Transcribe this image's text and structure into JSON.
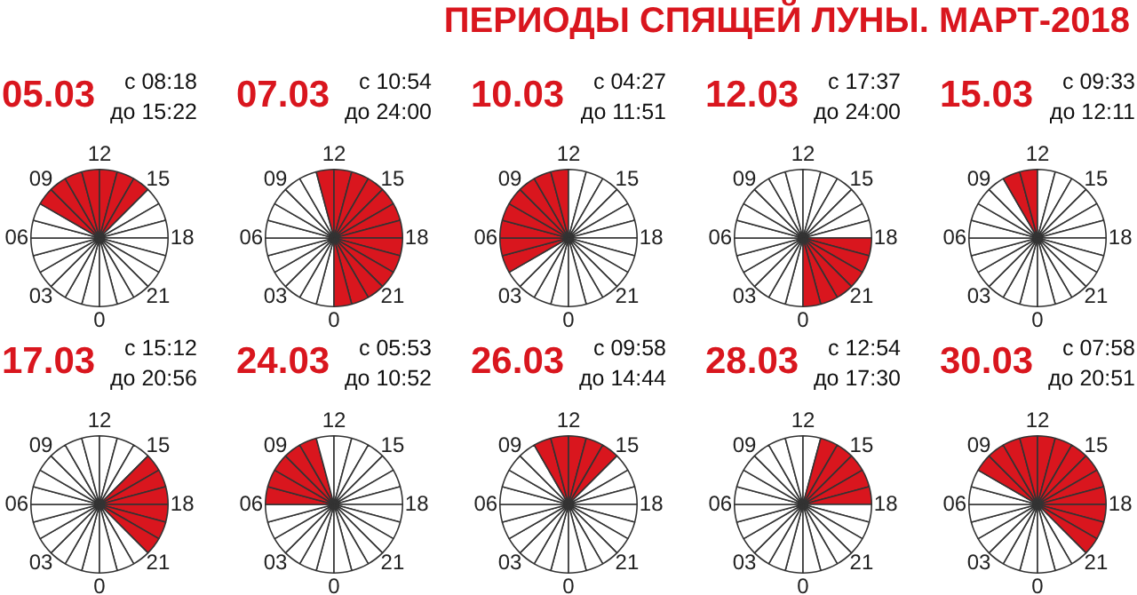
{
  "chart_data": [
    {
      "type": "pie",
      "subtitle": "05.03",
      "annotations": [
        "с 08:18",
        "до 15:22",
        "0",
        "03",
        "06",
        "09",
        "12",
        "15",
        "18",
        "21"
      ],
      "legend": false,
      "categories": [
        null,
        null,
        null,
        null,
        null,
        null,
        null,
        null,
        null,
        null,
        null,
        null,
        null,
        null,
        null,
        null,
        null,
        null,
        null,
        null,
        null,
        null,
        null,
        null
      ],
      "values": [
        4.1667,
        4.1667,
        4.1667,
        4.1667,
        4.1667,
        4.1667,
        4.1667,
        4.1667,
        4.1667,
        4.1667,
        4.1667,
        4.1667,
        4.1667,
        4.1667,
        4.1667,
        4.1667,
        4.1667,
        4.1667,
        4.1667,
        4.1667,
        4.1667,
        4.1667,
        4.1667,
        4.1667
      ],
      "colors": [
        "#ffffff",
        "#ffffff",
        "#ffffff",
        "#ffffff",
        "#ffffff",
        "#ffffff",
        "#ffffff",
        "#ffffff",
        "#d9161e",
        "#d9161e",
        "#d9161e",
        "#d9161e",
        "#d9161e",
        "#d9161e",
        "#d9161e",
        "#ffffff",
        "#ffffff",
        "#ffffff",
        "#ffffff",
        "#ffffff",
        "#ffffff",
        "#ffffff",
        "#ffffff",
        "#ffffff"
      ]
    },
    {
      "type": "pie",
      "subtitle": "07.03",
      "annotations": [
        "с 10:54",
        "до 24:00",
        "0",
        "03",
        "06",
        "09",
        "12",
        "15",
        "18",
        "21"
      ],
      "legend": false,
      "categories": [
        null,
        null,
        null,
        null,
        null,
        null,
        null,
        null,
        null,
        null,
        null,
        null,
        null,
        null,
        null,
        null,
        null,
        null,
        null,
        null,
        null,
        null,
        null,
        null
      ],
      "values": [
        4.1667,
        4.1667,
        4.1667,
        4.1667,
        4.1667,
        4.1667,
        4.1667,
        4.1667,
        4.1667,
        4.1667,
        4.1667,
        4.1667,
        4.1667,
        4.1667,
        4.1667,
        4.1667,
        4.1667,
        4.1667,
        4.1667,
        4.1667,
        4.1667,
        4.1667,
        4.1667,
        4.1667
      ],
      "colors": [
        "#ffffff",
        "#ffffff",
        "#ffffff",
        "#ffffff",
        "#ffffff",
        "#ffffff",
        "#ffffff",
        "#ffffff",
        "#ffffff",
        "#ffffff",
        "#ffffff",
        "#d9161e",
        "#d9161e",
        "#d9161e",
        "#d9161e",
        "#d9161e",
        "#d9161e",
        "#d9161e",
        "#d9161e",
        "#d9161e",
        "#d9161e",
        "#d9161e",
        "#d9161e",
        "#d9161e"
      ]
    },
    {
      "type": "pie",
      "subtitle": "10.03",
      "annotations": [
        "с 04:27",
        "до 11:51",
        "0",
        "03",
        "06",
        "09",
        "12",
        "15",
        "18",
        "21"
      ],
      "legend": false,
      "categories": [
        null,
        null,
        null,
        null,
        null,
        null,
        null,
        null,
        null,
        null,
        null,
        null,
        null,
        null,
        null,
        null,
        null,
        null,
        null,
        null,
        null,
        null,
        null,
        null
      ],
      "values": [
        4.1667,
        4.1667,
        4.1667,
        4.1667,
        4.1667,
        4.1667,
        4.1667,
        4.1667,
        4.1667,
        4.1667,
        4.1667,
        4.1667,
        4.1667,
        4.1667,
        4.1667,
        4.1667,
        4.1667,
        4.1667,
        4.1667,
        4.1667,
        4.1667,
        4.1667,
        4.1667,
        4.1667
      ],
      "colors": [
        "#ffffff",
        "#ffffff",
        "#ffffff",
        "#ffffff",
        "#d9161e",
        "#d9161e",
        "#d9161e",
        "#d9161e",
        "#d9161e",
        "#d9161e",
        "#d9161e",
        "#d9161e",
        "#ffffff",
        "#ffffff",
        "#ffffff",
        "#ffffff",
        "#ffffff",
        "#ffffff",
        "#ffffff",
        "#ffffff",
        "#ffffff",
        "#ffffff",
        "#ffffff",
        "#ffffff"
      ]
    },
    {
      "type": "pie",
      "subtitle": "12.03",
      "annotations": [
        "с 17:37",
        "до 24:00",
        "0",
        "03",
        "06",
        "09",
        "12",
        "15",
        "18",
        "21"
      ],
      "legend": false,
      "categories": [
        null,
        null,
        null,
        null,
        null,
        null,
        null,
        null,
        null,
        null,
        null,
        null,
        null,
        null,
        null,
        null,
        null,
        null,
        null,
        null,
        null,
        null,
        null,
        null
      ],
      "values": [
        4.1667,
        4.1667,
        4.1667,
        4.1667,
        4.1667,
        4.1667,
        4.1667,
        4.1667,
        4.1667,
        4.1667,
        4.1667,
        4.1667,
        4.1667,
        4.1667,
        4.1667,
        4.1667,
        4.1667,
        4.1667,
        4.1667,
        4.1667,
        4.1667,
        4.1667,
        4.1667,
        4.1667
      ],
      "colors": [
        "#ffffff",
        "#ffffff",
        "#ffffff",
        "#ffffff",
        "#ffffff",
        "#ffffff",
        "#ffffff",
        "#ffffff",
        "#ffffff",
        "#ffffff",
        "#ffffff",
        "#ffffff",
        "#ffffff",
        "#ffffff",
        "#ffffff",
        "#ffffff",
        "#ffffff",
        "#ffffff",
        "#d9161e",
        "#d9161e",
        "#d9161e",
        "#d9161e",
        "#d9161e",
        "#d9161e"
      ]
    },
    {
      "type": "pie",
      "title": "ПЕРИОДЫ СПЯЩЕЙ ЛУНЫ. МАРТ-2018",
      "subtitle": "15.03",
      "annotations": [
        "с 09:33",
        "до 12:11",
        "0",
        "03",
        "06",
        "09",
        "12",
        "15",
        "18",
        "21"
      ],
      "legend": false,
      "categories": [
        null,
        null,
        null,
        null,
        null,
        null,
        null,
        null,
        null,
        null,
        null,
        null,
        null,
        null,
        null,
        null,
        null,
        null,
        null,
        null,
        null,
        null,
        null,
        null
      ],
      "values": [
        4.1667,
        4.1667,
        4.1667,
        4.1667,
        4.1667,
        4.1667,
        4.1667,
        4.1667,
        4.1667,
        4.1667,
        4.1667,
        4.1667,
        4.1667,
        4.1667,
        4.1667,
        4.1667,
        4.1667,
        4.1667,
        4.1667,
        4.1667,
        4.1667,
        4.1667,
        4.1667,
        4.1667
      ],
      "colors": [
        "#ffffff",
        "#ffffff",
        "#ffffff",
        "#ffffff",
        "#ffffff",
        "#ffffff",
        "#ffffff",
        "#ffffff",
        "#ffffff",
        "#ffffff",
        "#d9161e",
        "#d9161e",
        "#ffffff",
        "#ffffff",
        "#ffffff",
        "#ffffff",
        "#ffffff",
        "#ffffff",
        "#ffffff",
        "#ffffff",
        "#ffffff",
        "#ffffff",
        "#ffffff",
        "#ffffff"
      ]
    },
    {
      "type": "pie",
      "subtitle": "17.03",
      "annotations": [
        "с 15:12",
        "до 20:56",
        "0",
        "03",
        "06",
        "09",
        "12",
        "15",
        "18",
        "21"
      ],
      "legend": false,
      "categories": [
        null,
        null,
        null,
        null,
        null,
        null,
        null,
        null,
        null,
        null,
        null,
        null,
        null,
        null,
        null,
        null,
        null,
        null,
        null,
        null,
        null,
        null,
        null,
        null
      ],
      "values": [
        4.1667,
        4.1667,
        4.1667,
        4.1667,
        4.1667,
        4.1667,
        4.1667,
        4.1667,
        4.1667,
        4.1667,
        4.1667,
        4.1667,
        4.1667,
        4.1667,
        4.1667,
        4.1667,
        4.1667,
        4.1667,
        4.1667,
        4.1667,
        4.1667,
        4.1667,
        4.1667,
        4.1667
      ],
      "colors": [
        "#ffffff",
        "#ffffff",
        "#ffffff",
        "#ffffff",
        "#ffffff",
        "#ffffff",
        "#ffffff",
        "#ffffff",
        "#ffffff",
        "#ffffff",
        "#ffffff",
        "#ffffff",
        "#ffffff",
        "#ffffff",
        "#ffffff",
        "#d9161e",
        "#d9161e",
        "#d9161e",
        "#d9161e",
        "#d9161e",
        "#d9161e",
        "#ffffff",
        "#ffffff",
        "#ffffff"
      ]
    },
    {
      "type": "pie",
      "subtitle": "24.03",
      "annotations": [
        "с 05:53",
        "до 10:52",
        "0",
        "03",
        "06",
        "09",
        "12",
        "15",
        "18",
        "21"
      ],
      "legend": false,
      "categories": [
        null,
        null,
        null,
        null,
        null,
        null,
        null,
        null,
        null,
        null,
        null,
        null,
        null,
        null,
        null,
        null,
        null,
        null,
        null,
        null,
        null,
        null,
        null,
        null
      ],
      "values": [
        4.1667,
        4.1667,
        4.1667,
        4.1667,
        4.1667,
        4.1667,
        4.1667,
        4.1667,
        4.1667,
        4.1667,
        4.1667,
        4.1667,
        4.1667,
        4.1667,
        4.1667,
        4.1667,
        4.1667,
        4.1667,
        4.1667,
        4.1667,
        4.1667,
        4.1667,
        4.1667,
        4.1667
      ],
      "colors": [
        "#ffffff",
        "#ffffff",
        "#ffffff",
        "#ffffff",
        "#ffffff",
        "#ffffff",
        "#d9161e",
        "#d9161e",
        "#d9161e",
        "#d9161e",
        "#d9161e",
        "#ffffff",
        "#ffffff",
        "#ffffff",
        "#ffffff",
        "#ffffff",
        "#ffffff",
        "#ffffff",
        "#ffffff",
        "#ffffff",
        "#ffffff",
        "#ffffff",
        "#ffffff",
        "#ffffff"
      ]
    },
    {
      "type": "pie",
      "subtitle": "26.03",
      "annotations": [
        "с 09:58",
        "до 14:44",
        "0",
        "03",
        "06",
        "09",
        "12",
        "15",
        "18",
        "21"
      ],
      "legend": false,
      "categories": [
        null,
        null,
        null,
        null,
        null,
        null,
        null,
        null,
        null,
        null,
        null,
        null,
        null,
        null,
        null,
        null,
        null,
        null,
        null,
        null,
        null,
        null,
        null,
        null
      ],
      "values": [
        4.1667,
        4.1667,
        4.1667,
        4.1667,
        4.1667,
        4.1667,
        4.1667,
        4.1667,
        4.1667,
        4.1667,
        4.1667,
        4.1667,
        4.1667,
        4.1667,
        4.1667,
        4.1667,
        4.1667,
        4.1667,
        4.1667,
        4.1667,
        4.1667,
        4.1667,
        4.1667,
        4.1667
      ],
      "colors": [
        "#ffffff",
        "#ffffff",
        "#ffffff",
        "#ffffff",
        "#ffffff",
        "#ffffff",
        "#ffffff",
        "#ffffff",
        "#ffffff",
        "#ffffff",
        "#d9161e",
        "#d9161e",
        "#d9161e",
        "#d9161e",
        "#d9161e",
        "#ffffff",
        "#ffffff",
        "#ffffff",
        "#ffffff",
        "#ffffff",
        "#ffffff",
        "#ffffff",
        "#ffffff",
        "#ffffff"
      ]
    },
    {
      "type": "pie",
      "subtitle": "28.03",
      "annotations": [
        "с 12:54",
        "до 17:30",
        "0",
        "03",
        "06",
        "09",
        "12",
        "15",
        "18",
        "21"
      ],
      "legend": false,
      "categories": [
        null,
        null,
        null,
        null,
        null,
        null,
        null,
        null,
        null,
        null,
        null,
        null,
        null,
        null,
        null,
        null,
        null,
        null,
        null,
        null,
        null,
        null,
        null,
        null
      ],
      "values": [
        4.1667,
        4.1667,
        4.1667,
        4.1667,
        4.1667,
        4.1667,
        4.1667,
        4.1667,
        4.1667,
        4.1667,
        4.1667,
        4.1667,
        4.1667,
        4.1667,
        4.1667,
        4.1667,
        4.1667,
        4.1667,
        4.1667,
        4.1667,
        4.1667,
        4.1667,
        4.1667,
        4.1667
      ],
      "colors": [
        "#ffffff",
        "#ffffff",
        "#ffffff",
        "#ffffff",
        "#ffffff",
        "#ffffff",
        "#ffffff",
        "#ffffff",
        "#ffffff",
        "#ffffff",
        "#ffffff",
        "#ffffff",
        "#ffffff",
        "#d9161e",
        "#d9161e",
        "#d9161e",
        "#d9161e",
        "#d9161e",
        "#ffffff",
        "#ffffff",
        "#ffffff",
        "#ffffff",
        "#ffffff",
        "#ffffff"
      ]
    },
    {
      "type": "pie",
      "subtitle": "30.03",
      "annotations": [
        "с 07:58",
        "до 20:51",
        "0",
        "03",
        "06",
        "09",
        "12",
        "15",
        "18",
        "21"
      ],
      "legend": false,
      "categories": [
        null,
        null,
        null,
        null,
        null,
        null,
        null,
        null,
        null,
        null,
        null,
        null,
        null,
        null,
        null,
        null,
        null,
        null,
        null,
        null,
        null,
        null,
        null,
        null
      ],
      "values": [
        4.1667,
        4.1667,
        4.1667,
        4.1667,
        4.1667,
        4.1667,
        4.1667,
        4.1667,
        4.1667,
        4.1667,
        4.1667,
        4.1667,
        4.1667,
        4.1667,
        4.1667,
        4.1667,
        4.1667,
        4.1667,
        4.1667,
        4.1667,
        4.1667,
        4.1667,
        4.1667,
        4.1667
      ],
      "colors": [
        "#ffffff",
        "#ffffff",
        "#ffffff",
        "#ffffff",
        "#ffffff",
        "#ffffff",
        "#ffffff",
        "#ffffff",
        "#d9161e",
        "#d9161e",
        "#d9161e",
        "#d9161e",
        "#d9161e",
        "#d9161e",
        "#d9161e",
        "#d9161e",
        "#d9161e",
        "#d9161e",
        "#d9161e",
        "#d9161e",
        "#d9161e",
        "#ffffff",
        "#ffffff",
        "#ffffff"
      ]
    }
  ]
}
